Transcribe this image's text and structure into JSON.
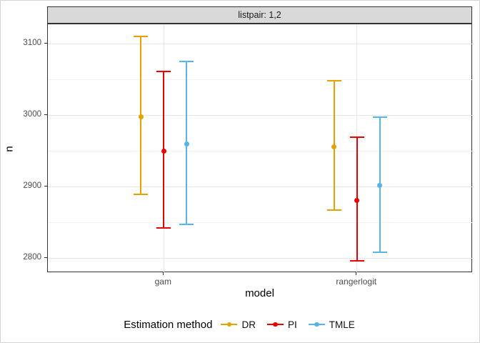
{
  "chart_data": {
    "type": "pointrange",
    "facet_label": "listpair: 1,2",
    "xlabel": "model",
    "ylabel": "n",
    "categories": [
      "gam",
      "rangerlogit"
    ],
    "y_ticks": [
      2800,
      2900,
      3000,
      3100
    ],
    "y_minor_ticks": [
      2850,
      2950,
      3050
    ],
    "ylim": [
      2779,
      3127
    ],
    "grid": true,
    "legend_position": "bottom",
    "legend_title": "Estimation method",
    "series": [
      {
        "name": "DR",
        "color": "#E2A300",
        "points": [
          {
            "x": "gam",
            "y": 2998,
            "ymin": 2889,
            "ymax": 3110
          },
          {
            "x": "rangerlogit",
            "y": 2956,
            "ymin": 2867,
            "ymax": 3048
          }
        ]
      },
      {
        "name": "PI",
        "color": "#EE0000",
        "points": [
          {
            "x": "gam",
            "y": 2950,
            "ymin": 2842,
            "ymax": 3061
          },
          {
            "x": "rangerlogit",
            "y": 2881,
            "ymin": 2796,
            "ymax": 2969
          }
        ]
      },
      {
        "name": "TMLE",
        "color": "#56B4E9",
        "points": [
          {
            "x": "gam",
            "y": 2960,
            "ymin": 2847,
            "ymax": 3075
          },
          {
            "x": "rangerlogit",
            "y": 2902,
            "ymin": 2808,
            "ymax": 2997
          }
        ]
      }
    ]
  }
}
